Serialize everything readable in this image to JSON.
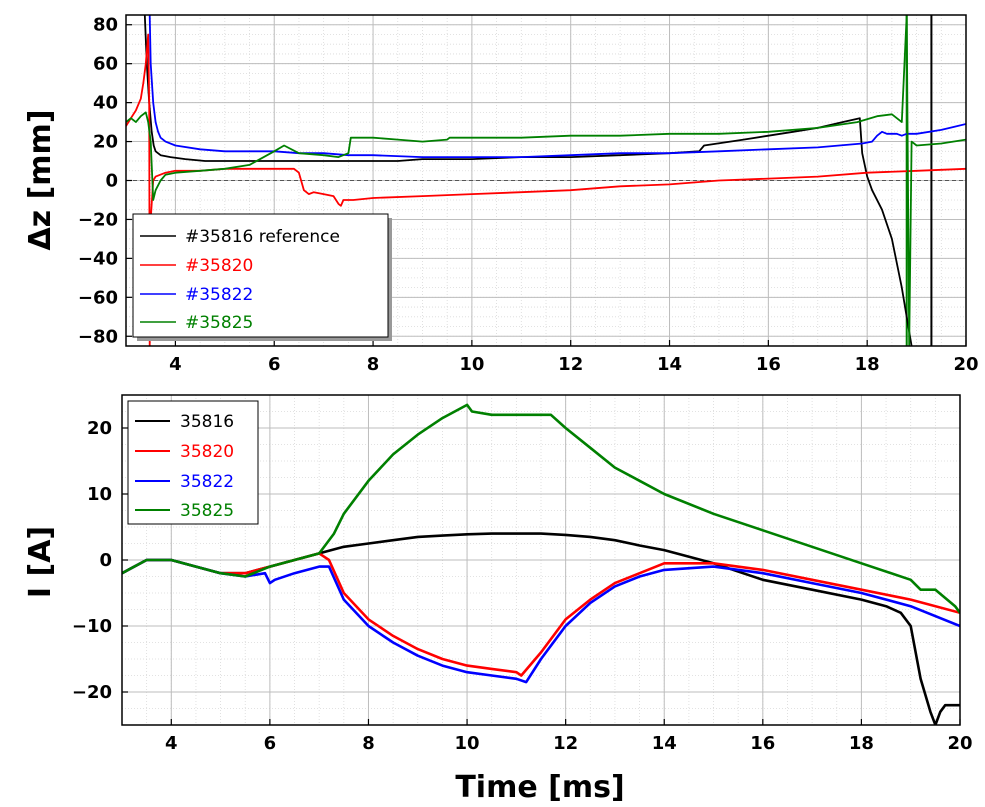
{
  "chart_data": [
    {
      "type": "line",
      "panel": "top",
      "title": "",
      "xlabel": "",
      "ylabel": "Δz [mm]",
      "xlim": [
        3,
        20
      ],
      "ylim": [
        -85,
        85
      ],
      "x_ticks": [
        4,
        6,
        8,
        10,
        12,
        14,
        16,
        18,
        20
      ],
      "y_ticks": [
        -80,
        -60,
        -40,
        -20,
        0,
        20,
        40,
        60,
        80
      ],
      "grid": true,
      "zero_line": true,
      "legend": {
        "position": "bottom-left"
      },
      "series": [
        {
          "name": "#35816 reference",
          "color": "#000000",
          "x": [
            3.38,
            3.42,
            3.47,
            3.52,
            3.56,
            3.6,
            3.7,
            3.9,
            4.2,
            4.6,
            5.0,
            5.5,
            6.0,
            6.5,
            7.0,
            7.5,
            8.0,
            8.5,
            9.0,
            10.0,
            11.0,
            12.0,
            13.0,
            14.0,
            14.6,
            14.7,
            15.5,
            16.0,
            16.5,
            17.0,
            17.5,
            17.85,
            17.9,
            18.0,
            18.1,
            18.3,
            18.5,
            18.7,
            18.8,
            18.9
          ],
          "y": [
            85,
            60,
            40,
            25,
            18,
            15,
            13,
            12,
            11,
            10,
            10,
            10,
            10,
            10,
            10,
            10,
            10,
            10,
            11,
            11,
            12,
            12,
            13,
            14,
            15,
            18,
            21,
            23,
            25,
            27,
            30,
            32,
            14,
            2,
            -5,
            -15,
            -30,
            -55,
            -70,
            -85
          ]
        },
        {
          "name": "#35820",
          "color": "#ff0000",
          "x": [
            3.0,
            3.1,
            3.2,
            3.3,
            3.35,
            3.4,
            3.45,
            3.47,
            3.48,
            3.5,
            3.55,
            3.6,
            3.8,
            4.0,
            4.5,
            5.0,
            5.5,
            6.0,
            6.4,
            6.5,
            6.6,
            6.7,
            6.8,
            7.0,
            7.2,
            7.3,
            7.35,
            7.4,
            7.6,
            8.0,
            9.0,
            10.0,
            11.0,
            12.0,
            13.0,
            14.0,
            15.0,
            16.0,
            17.0,
            18.0,
            19.0,
            20.0
          ],
          "y": [
            28,
            32,
            36,
            42,
            50,
            60,
            75,
            40,
            -85,
            -20,
            0,
            2,
            4,
            5,
            5,
            6,
            6,
            6,
            6,
            4,
            -5,
            -7,
            -6,
            -7,
            -8,
            -12,
            -13,
            -10,
            -10,
            -9,
            -8,
            -7,
            -6,
            -5,
            -3,
            -2,
            0,
            1,
            2,
            4,
            5,
            6
          ]
        },
        {
          "name": "#35822",
          "color": "#0000ff",
          "x": [
            3.48,
            3.5,
            3.55,
            3.6,
            3.65,
            3.7,
            3.8,
            4.0,
            4.5,
            5.0,
            5.5,
            6.0,
            6.5,
            7.0,
            7.5,
            8.0,
            9.0,
            10.0,
            11.0,
            12.0,
            13.0,
            14.0,
            15.0,
            16.0,
            17.0,
            17.9,
            18.1,
            18.2,
            18.3,
            18.4,
            18.5,
            18.6,
            18.7,
            18.8,
            19.0,
            19.5,
            20.0
          ],
          "y": [
            85,
            60,
            40,
            30,
            25,
            22,
            20,
            18,
            16,
            15,
            15,
            15,
            14,
            14,
            13,
            13,
            12,
            12,
            12,
            13,
            14,
            14,
            15,
            16,
            17,
            19,
            20,
            23,
            25,
            24,
            24,
            24,
            23,
            24,
            24,
            26,
            29
          ]
        },
        {
          "name": "#35825",
          "color": "#008000",
          "x": [
            3.0,
            3.1,
            3.2,
            3.3,
            3.4,
            3.45,
            3.5,
            3.55,
            3.6,
            3.7,
            3.8,
            4.0,
            4.5,
            5.0,
            5.5,
            6.0,
            6.2,
            6.5,
            7.0,
            7.3,
            7.5,
            7.55,
            8.0,
            8.5,
            9.0,
            9.5,
            9.55,
            10.0,
            11.0,
            12.0,
            13.0,
            14.0,
            15.0,
            16.0,
            17.0,
            17.8,
            18.2,
            18.5,
            18.7,
            18.8,
            18.85,
            18.9,
            19.0,
            19.5,
            20.0
          ],
          "y": [
            30,
            32,
            30,
            33,
            35,
            30,
            20,
            -10,
            -5,
            0,
            3,
            4,
            5,
            6,
            8,
            15,
            18,
            14,
            13,
            12,
            14,
            22,
            22,
            21,
            20,
            21,
            22,
            22,
            22,
            23,
            23,
            24,
            24,
            25,
            27,
            30,
            33,
            34,
            30,
            85,
            -85,
            20,
            18,
            19,
            21
          ]
        }
      ],
      "vertical_lines": [
        {
          "x": 19.3,
          "color": "#000000"
        },
        {
          "x": 18.8,
          "color": "#008000"
        }
      ]
    },
    {
      "type": "line",
      "panel": "bottom",
      "title": "",
      "xlabel": "Time [ms]",
      "ylabel": "I [A]",
      "xlim": [
        3,
        20
      ],
      "ylim": [
        -25,
        25
      ],
      "x_ticks": [
        4,
        6,
        8,
        10,
        12,
        14,
        16,
        18,
        20
      ],
      "y_ticks": [
        -20,
        -10,
        0,
        10,
        20
      ],
      "grid": true,
      "legend": {
        "position": "top-left"
      },
      "series": [
        {
          "name": "35816",
          "color": "#000000",
          "x": [
            3.0,
            3.5,
            4.0,
            4.5,
            5.0,
            5.5,
            6.0,
            6.5,
            7.0,
            7.5,
            8.0,
            8.5,
            9.0,
            9.5,
            10.0,
            10.5,
            11.0,
            11.5,
            12.0,
            12.5,
            13.0,
            13.5,
            14.0,
            15.0,
            16.0,
            17.0,
            18.0,
            18.5,
            18.8,
            19.0,
            19.2,
            19.4,
            19.5,
            19.6,
            19.7,
            20.0
          ],
          "y": [
            -2,
            0,
            0,
            -1,
            -2,
            -2,
            -1,
            0,
            1,
            2,
            2.5,
            3,
            3.5,
            3.7,
            3.9,
            4,
            4,
            4,
            3.8,
            3.5,
            3,
            2.2,
            1.5,
            -0.5,
            -3,
            -4.5,
            -6,
            -7,
            -8,
            -10,
            -18,
            -23,
            -25,
            -23,
            -22,
            -22
          ]
        },
        {
          "name": "35820",
          "color": "#ff0000",
          "x": [
            3.0,
            3.5,
            4.0,
            4.5,
            5.0,
            5.5,
            6.0,
            6.5,
            7.0,
            7.1,
            7.2,
            7.5,
            8.0,
            8.5,
            9.0,
            9.5,
            10.0,
            10.5,
            11.0,
            11.1,
            11.5,
            12.0,
            12.5,
            13.0,
            13.5,
            14.0,
            15.0,
            16.0,
            17.0,
            18.0,
            19.0,
            20.0
          ],
          "y": [
            -2,
            0,
            0,
            -1,
            -2,
            -2,
            -1,
            0,
            1,
            0.5,
            0,
            -5,
            -9,
            -11.5,
            -13.5,
            -15,
            -16,
            -16.5,
            -17,
            -17.5,
            -14,
            -9,
            -6,
            -3.5,
            -2,
            -0.5,
            -0.5,
            -1.5,
            -3,
            -4.5,
            -6,
            -8
          ]
        },
        {
          "name": "35822",
          "color": "#0000ff",
          "x": [
            3.0,
            3.5,
            4.0,
            4.5,
            5.0,
            5.5,
            5.9,
            6.0,
            6.1,
            6.5,
            7.0,
            7.2,
            7.5,
            8.0,
            8.5,
            9.0,
            9.5,
            10.0,
            10.5,
            11.0,
            11.2,
            11.5,
            12.0,
            12.5,
            13.0,
            13.5,
            14.0,
            15.0,
            16.0,
            17.0,
            18.0,
            19.0,
            20.0
          ],
          "y": [
            -2,
            0,
            0,
            -1,
            -2,
            -2.5,
            -2,
            -3.5,
            -3,
            -2,
            -1,
            -1,
            -6,
            -10,
            -12.5,
            -14.5,
            -16,
            -17,
            -17.5,
            -18,
            -18.5,
            -15,
            -10,
            -6.5,
            -4,
            -2.5,
            -1.5,
            -1,
            -2,
            -3.5,
            -5,
            -7,
            -10
          ]
        },
        {
          "name": "35825",
          "color": "#008000",
          "x": [
            3.0,
            3.5,
            4.0,
            4.5,
            5.0,
            5.5,
            6.0,
            6.5,
            7.0,
            7.3,
            7.5,
            8.0,
            8.5,
            9.0,
            9.5,
            10.0,
            10.1,
            10.5,
            11.0,
            11.5,
            11.7,
            12.0,
            12.5,
            13.0,
            13.5,
            14.0,
            15.0,
            16.0,
            17.0,
            18.0,
            19.0,
            19.2,
            19.5,
            19.9,
            20.0
          ],
          "y": [
            -2,
            0,
            0,
            -1,
            -2,
            -2.5,
            -1,
            0,
            1,
            4,
            7,
            12,
            16,
            19,
            21.5,
            23.5,
            22.5,
            22,
            22,
            22,
            22,
            20,
            17,
            14,
            12,
            10,
            7,
            4.5,
            2,
            -0.5,
            -3,
            -4.5,
            -4.5,
            -7,
            -8
          ]
        }
      ]
    }
  ]
}
